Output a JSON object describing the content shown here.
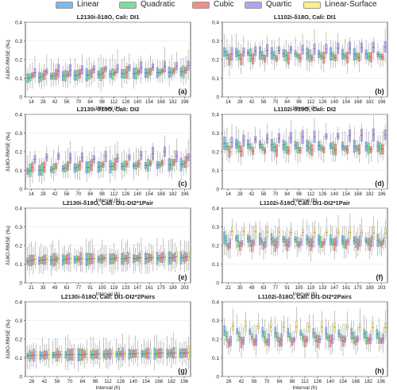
{
  "legend": [
    {
      "label": "Linear",
      "color": "#7fb8e8"
    },
    {
      "label": "Quadratic",
      "color": "#7fdb9a"
    },
    {
      "label": "Cubic",
      "color": "#ef8f8a"
    },
    {
      "label": "Quartic",
      "color": "#b9a2ec"
    },
    {
      "label": "Linear-Surface",
      "color": "#f7f08c"
    }
  ],
  "chart_data": [
    {
      "panel": "a",
      "type": "box",
      "title": "L2130i-δ18O, Cali: DI1",
      "xlabel": "Interval (h)",
      "ylabel": "δ18O-RMSE (‰)",
      "ylim": [
        0,
        0.4
      ],
      "yticks": [
        "0",
        "0.1",
        "0.2",
        "0.3",
        "0.4"
      ],
      "categories": [
        "14",
        "28",
        "42",
        "56",
        "70",
        "84",
        "98",
        "112",
        "126",
        "140",
        "154",
        "168",
        "182",
        "196"
      ],
      "series": [
        {
          "name": "Linear",
          "medians": [
            0.1,
            0.105,
            0.11,
            0.112,
            0.115,
            0.118,
            0.12,
            0.122,
            0.124,
            0.126,
            0.128,
            0.13,
            0.132,
            0.134
          ]
        },
        {
          "name": "Quadratic",
          "medians": [
            0.105,
            0.108,
            0.112,
            0.114,
            0.116,
            0.118,
            0.12,
            0.122,
            0.124,
            0.126,
            0.128,
            0.13,
            0.132,
            0.134
          ]
        },
        {
          "name": "Cubic",
          "medians": [
            0.115,
            0.118,
            0.12,
            0.122,
            0.124,
            0.126,
            0.128,
            0.13,
            0.132,
            0.134,
            0.136,
            0.138,
            0.14,
            0.142
          ]
        },
        {
          "name": "Quartic",
          "medians": [
            0.13,
            0.135,
            0.14,
            0.142,
            0.145,
            0.148,
            0.15,
            0.152,
            0.155,
            0.158,
            0.16,
            0.162,
            0.165,
            0.168
          ]
        }
      ]
    },
    {
      "panel": "b",
      "type": "box",
      "title": "L1102i-δ18O, Cali: DI1",
      "xlabel": "Interval (h)",
      "ylabel": "",
      "ylim": [
        0,
        0.4
      ],
      "yticks": [
        "0",
        "0.1",
        "0.2",
        "0.3",
        "0.4"
      ],
      "categories": [
        "14",
        "28",
        "42",
        "56",
        "70",
        "84",
        "98",
        "112",
        "126",
        "140",
        "154",
        "168",
        "182",
        "196"
      ],
      "series": [
        {
          "name": "Linear",
          "medians": [
            0.24,
            0.238,
            0.236,
            0.235,
            0.234,
            0.233,
            0.232,
            0.231,
            0.23,
            0.23,
            0.229,
            0.228,
            0.228,
            0.227
          ]
        },
        {
          "name": "Quadratic",
          "medians": [
            0.225,
            0.224,
            0.223,
            0.222,
            0.222,
            0.221,
            0.22,
            0.22,
            0.219,
            0.219,
            0.218,
            0.218,
            0.217,
            0.217
          ]
        },
        {
          "name": "Cubic",
          "medians": [
            0.2,
            0.202,
            0.204,
            0.205,
            0.206,
            0.207,
            0.208,
            0.209,
            0.21,
            0.21,
            0.211,
            0.212,
            0.212,
            0.213
          ]
        },
        {
          "name": "Quartic",
          "medians": [
            0.23,
            0.24,
            0.245,
            0.248,
            0.25,
            0.252,
            0.254,
            0.256,
            0.258,
            0.26,
            0.262,
            0.264,
            0.266,
            0.268
          ]
        }
      ]
    },
    {
      "panel": "c",
      "type": "box",
      "title": "L2130i-δ18O, Cali: DI2",
      "xlabel": "Interval (h)",
      "ylabel": "δ18O-RMSE (‰)",
      "ylim": [
        0,
        0.4
      ],
      "yticks": [
        "0",
        "0.1",
        "0.2",
        "0.3",
        "0.4"
      ],
      "categories": [
        "14",
        "28",
        "42",
        "56",
        "70",
        "84",
        "98",
        "112",
        "126",
        "140",
        "154",
        "168",
        "182",
        "196"
      ],
      "series": [
        {
          "name": "Linear",
          "medians": [
            0.095,
            0.1,
            0.105,
            0.11,
            0.112,
            0.115,
            0.118,
            0.12,
            0.122,
            0.124,
            0.126,
            0.128,
            0.13,
            0.132
          ]
        },
        {
          "name": "Quadratic",
          "medians": [
            0.1,
            0.105,
            0.11,
            0.113,
            0.115,
            0.118,
            0.12,
            0.122,
            0.124,
            0.126,
            0.128,
            0.13,
            0.132,
            0.134
          ]
        },
        {
          "name": "Cubic",
          "medians": [
            0.115,
            0.118,
            0.122,
            0.124,
            0.126,
            0.128,
            0.13,
            0.132,
            0.134,
            0.136,
            0.138,
            0.14,
            0.142,
            0.144
          ]
        },
        {
          "name": "Quartic",
          "medians": [
            0.16,
            0.17,
            0.175,
            0.165,
            0.17,
            0.16,
            0.175,
            0.165,
            0.17,
            0.18,
            0.19,
            0.2,
            0.175,
            0.17
          ]
        }
      ]
    },
    {
      "panel": "d",
      "type": "box",
      "title": "L1102i-δ18O, Cali: DI2",
      "xlabel": "Interval (h)",
      "ylabel": "",
      "ylim": [
        0,
        0.4
      ],
      "yticks": [
        "0",
        "0.1",
        "0.2",
        "0.3",
        "0.4"
      ],
      "categories": [
        "14",
        "28",
        "42",
        "56",
        "70",
        "84",
        "98",
        "112",
        "126",
        "140",
        "154",
        "168",
        "182",
        "196"
      ],
      "series": [
        {
          "name": "Linear",
          "medians": [
            0.245,
            0.242,
            0.24,
            0.238,
            0.236,
            0.235,
            0.234,
            0.233,
            0.232,
            0.231,
            0.23,
            0.229,
            0.228,
            0.228
          ]
        },
        {
          "name": "Quadratic",
          "medians": [
            0.228,
            0.226,
            0.225,
            0.224,
            0.223,
            0.222,
            0.221,
            0.22,
            0.22,
            0.219,
            0.218,
            0.218,
            0.217,
            0.217
          ]
        },
        {
          "name": "Cubic",
          "medians": [
            0.2,
            0.202,
            0.204,
            0.205,
            0.206,
            0.207,
            0.208,
            0.209,
            0.21,
            0.211,
            0.211,
            0.212,
            0.212,
            0.213
          ]
        },
        {
          "name": "Quartic",
          "medians": [
            0.25,
            0.26,
            0.265,
            0.27,
            0.272,
            0.275,
            0.278,
            0.28,
            0.282,
            0.284,
            0.286,
            0.288,
            0.29,
            0.292
          ]
        }
      ]
    },
    {
      "panel": "e",
      "type": "box",
      "title": "L2130i-δ18O, Cali: DI1-DI2*1Pair",
      "xlabel": "Interval (h)",
      "ylabel": "δ18O-RMSE (‰)",
      "ylim": [
        0,
        0.4
      ],
      "yticks": [
        "0",
        "0.1",
        "0.2",
        "0.3",
        "0.4"
      ],
      "categories": [
        "21",
        "35",
        "49",
        "63",
        "77",
        "91",
        "105",
        "119",
        "133",
        "147",
        "161",
        "175",
        "189",
        "203"
      ],
      "series": [
        {
          "name": "Linear",
          "medians": [
            0.115,
            0.118,
            0.12,
            0.122,
            0.124,
            0.125,
            0.126,
            0.127,
            0.128,
            0.129,
            0.13,
            0.131,
            0.132,
            0.133
          ]
        },
        {
          "name": "Quadratic",
          "medians": [
            0.118,
            0.12,
            0.122,
            0.124,
            0.125,
            0.126,
            0.127,
            0.128,
            0.129,
            0.13,
            0.131,
            0.132,
            0.133,
            0.134
          ]
        },
        {
          "name": "Cubic",
          "medians": [
            0.12,
            0.122,
            0.124,
            0.126,
            0.127,
            0.128,
            0.129,
            0.13,
            0.131,
            0.132,
            0.133,
            0.134,
            0.135,
            0.136
          ]
        },
        {
          "name": "Quartic",
          "medians": [
            0.122,
            0.124,
            0.126,
            0.128,
            0.129,
            0.13,
            0.131,
            0.132,
            0.133,
            0.134,
            0.135,
            0.136,
            0.137,
            0.138
          ]
        },
        {
          "name": "Linear-Surface",
          "medians": [
            0.125,
            0.127,
            0.128,
            0.129,
            0.13,
            0.131,
            0.132,
            0.133,
            0.134,
            0.135,
            0.136,
            0.137,
            0.138,
            0.139
          ]
        }
      ]
    },
    {
      "panel": "f",
      "type": "box",
      "title": "L1102i-δ18O, Cali: DI1-DI2*1Pair",
      "xlabel": "Interval (h)",
      "ylabel": "",
      "ylim": [
        0,
        0.4
      ],
      "yticks": [
        "0",
        "0.1",
        "0.2",
        "0.3",
        "0.4"
      ],
      "categories": [
        "21",
        "35",
        "49",
        "63",
        "77",
        "91",
        "105",
        "119",
        "133",
        "147",
        "161",
        "175",
        "189",
        "203"
      ],
      "series": [
        {
          "name": "Linear",
          "medians": [
            0.24,
            0.238,
            0.236,
            0.235,
            0.234,
            0.233,
            0.232,
            0.231,
            0.23,
            0.23,
            0.229,
            0.228,
            0.228,
            0.227
          ]
        },
        {
          "name": "Quadratic",
          "medians": [
            0.225,
            0.224,
            0.223,
            0.222,
            0.222,
            0.221,
            0.22,
            0.22,
            0.219,
            0.219,
            0.218,
            0.218,
            0.217,
            0.217
          ]
        },
        {
          "name": "Cubic",
          "medians": [
            0.195,
            0.197,
            0.199,
            0.2,
            0.201,
            0.202,
            0.203,
            0.204,
            0.205,
            0.205,
            0.206,
            0.207,
            0.207,
            0.208
          ]
        },
        {
          "name": "Quartic",
          "medians": [
            0.21,
            0.212,
            0.214,
            0.215,
            0.216,
            0.217,
            0.218,
            0.219,
            0.22,
            0.22,
            0.221,
            0.222,
            0.222,
            0.223
          ]
        },
        {
          "name": "Linear-Surface",
          "medians": [
            0.275,
            0.274,
            0.273,
            0.272,
            0.272,
            0.271,
            0.27,
            0.27,
            0.269,
            0.269,
            0.268,
            0.268,
            0.267,
            0.267
          ]
        }
      ]
    },
    {
      "panel": "g",
      "type": "box",
      "title": "L2130i-δ18O, Cali: DI1-DI2*2Pairs",
      "xlabel": "Interval (h)",
      "ylabel": "δ18O-RMSE (‰)",
      "ylim": [
        0,
        0.4
      ],
      "yticks": [
        "0",
        "0.1",
        "0.2",
        "0.3",
        "0.4"
      ],
      "categories": [
        "28",
        "42",
        "56",
        "70",
        "84",
        "98",
        "112",
        "126",
        "140",
        "154",
        "168",
        "182",
        "196"
      ],
      "series": [
        {
          "name": "Linear",
          "medians": [
            0.11,
            0.112,
            0.114,
            0.115,
            0.116,
            0.117,
            0.118,
            0.119,
            0.12,
            0.121,
            0.122,
            0.123,
            0.124
          ]
        },
        {
          "name": "Quadratic",
          "medians": [
            0.112,
            0.114,
            0.115,
            0.116,
            0.117,
            0.118,
            0.119,
            0.12,
            0.121,
            0.122,
            0.123,
            0.124,
            0.125
          ]
        },
        {
          "name": "Cubic",
          "medians": [
            0.113,
            0.115,
            0.116,
            0.117,
            0.118,
            0.119,
            0.12,
            0.121,
            0.122,
            0.123,
            0.124,
            0.125,
            0.126
          ]
        },
        {
          "name": "Quartic",
          "medians": [
            0.114,
            0.116,
            0.117,
            0.118,
            0.119,
            0.12,
            0.121,
            0.122,
            0.123,
            0.124,
            0.125,
            0.126,
            0.127
          ]
        },
        {
          "name": "Linear-Surface",
          "medians": [
            0.115,
            0.117,
            0.118,
            0.119,
            0.12,
            0.121,
            0.122,
            0.123,
            0.124,
            0.125,
            0.126,
            0.127,
            0.128
          ]
        }
      ]
    },
    {
      "panel": "h",
      "type": "box",
      "title": "L1102i-δ18O, Cali: DI1-DI2*2Pairs",
      "xlabel": "Interval (h)",
      "ylabel": "",
      "ylim": [
        0,
        0.4
      ],
      "yticks": [
        "0",
        "0.1",
        "0.2",
        "0.3",
        "0.4"
      ],
      "categories": [
        "28",
        "42",
        "56",
        "70",
        "84",
        "98",
        "112",
        "126",
        "140",
        "154",
        "168",
        "182",
        "196"
      ],
      "series": [
        {
          "name": "Linear",
          "medians": [
            0.245,
            0.242,
            0.24,
            0.238,
            0.236,
            0.235,
            0.234,
            0.233,
            0.232,
            0.231,
            0.23,
            0.229,
            0.228
          ]
        },
        {
          "name": "Quadratic",
          "medians": [
            0.215,
            0.214,
            0.213,
            0.212,
            0.212,
            0.211,
            0.21,
            0.21,
            0.209,
            0.209,
            0.208,
            0.208,
            0.207
          ]
        },
        {
          "name": "Cubic",
          "medians": [
            0.18,
            0.182,
            0.184,
            0.185,
            0.186,
            0.187,
            0.188,
            0.189,
            0.19,
            0.19,
            0.191,
            0.192,
            0.192
          ]
        },
        {
          "name": "Quartic",
          "medians": [
            0.19,
            0.192,
            0.194,
            0.195,
            0.196,
            0.197,
            0.198,
            0.199,
            0.2,
            0.2,
            0.201,
            0.202,
            0.202
          ]
        },
        {
          "name": "Linear-Surface",
          "medians": [
            0.27,
            0.269,
            0.268,
            0.267,
            0.267,
            0.266,
            0.265,
            0.265,
            0.264,
            0.264,
            0.263,
            0.263,
            0.262
          ]
        }
      ]
    }
  ]
}
